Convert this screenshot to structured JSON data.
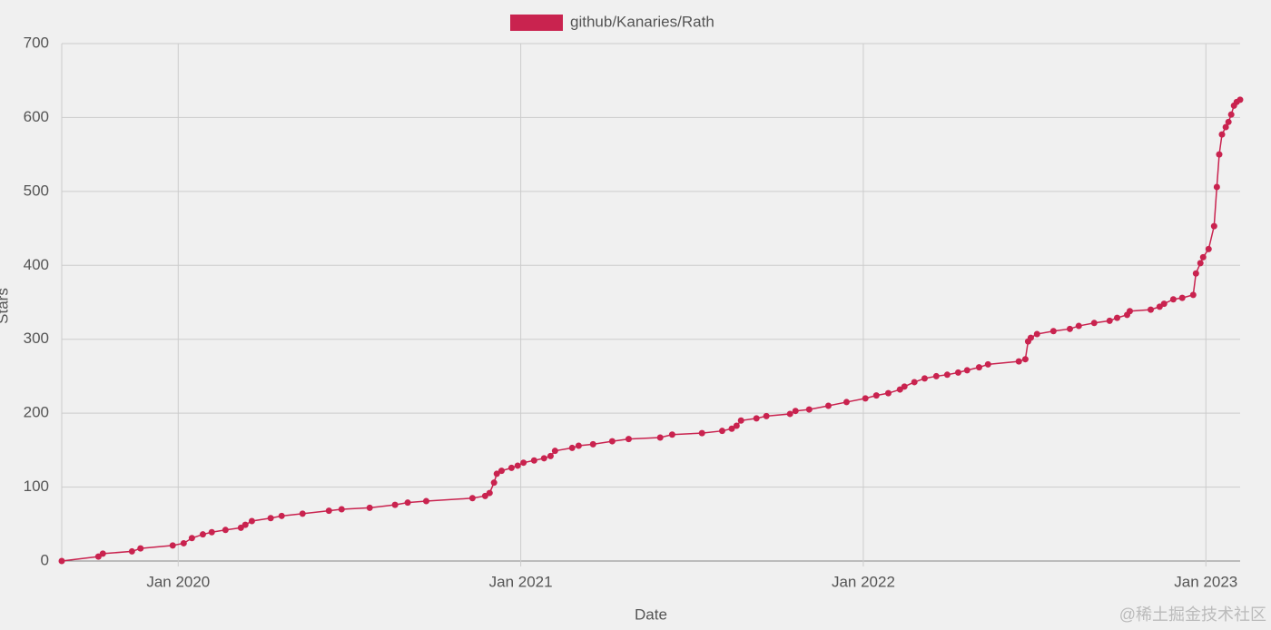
{
  "chart_data": {
    "type": "line",
    "x_label": "Date",
    "y_label": "Stars",
    "x": [
      2019.66,
      2019.767,
      2019.78,
      2019.865,
      2019.89,
      2019.984,
      2020.016,
      2020.04,
      2020.072,
      2020.098,
      2020.138,
      2020.183,
      2020.196,
      2020.215,
      2020.27,
      2020.302,
      2020.363,
      2020.44,
      2020.477,
      2020.559,
      2020.633,
      2020.67,
      2020.724,
      2020.859,
      2020.896,
      2020.909,
      2020.922,
      2020.93,
      2020.944,
      2020.973,
      2020.991,
      2021.008,
      2021.039,
      2021.068,
      2021.087,
      2021.1,
      2021.15,
      2021.169,
      2021.211,
      2021.267,
      2021.315,
      2021.407,
      2021.442,
      2021.529,
      2021.588,
      2021.616,
      2021.63,
      2021.643,
      2021.688,
      2021.717,
      2021.786,
      2021.802,
      2021.842,
      2021.898,
      2021.951,
      2022.006,
      2022.038,
      2022.073,
      2022.107,
      2022.12,
      2022.149,
      2022.179,
      2022.213,
      2022.245,
      2022.277,
      2022.303,
      2022.338,
      2022.364,
      2022.454,
      2022.473,
      2022.481,
      2022.489,
      2022.507,
      2022.555,
      2022.603,
      2022.629,
      2022.674,
      2022.719,
      2022.741,
      2022.77,
      2022.778,
      2022.839,
      2022.865,
      2022.878,
      2022.905,
      2022.931,
      2022.963,
      2022.971,
      2022.984,
      2022.992,
      2023.008,
      2023.024,
      2023.032,
      2023.039,
      2023.047,
      2023.058,
      2023.066,
      2023.074,
      2023.082,
      2023.09,
      2023.1
    ],
    "series": [
      {
        "name": "github/Kanaries/Rath",
        "color": "#c9234f",
        "values": [
          0,
          6,
          10,
          13,
          17,
          21,
          24,
          31,
          36,
          39,
          42,
          45,
          49,
          54,
          58,
          61,
          64,
          68,
          70,
          72,
          76,
          79,
          81,
          85,
          88,
          92,
          106,
          118,
          122,
          126,
          129,
          133,
          136,
          139,
          142,
          149,
          153,
          156,
          158,
          162,
          165,
          167,
          171,
          173,
          176,
          179,
          183,
          190,
          193,
          196,
          199,
          203,
          205,
          210,
          215,
          220,
          224,
          227,
          232,
          236,
          242,
          247,
          250,
          252,
          255,
          258,
          262,
          266,
          270,
          273,
          297,
          302,
          307,
          311,
          314,
          318,
          322,
          325,
          329,
          333,
          338,
          340,
          344,
          348,
          354,
          356,
          360,
          389,
          403,
          411,
          422,
          453,
          506,
          550,
          577,
          587,
          594,
          604,
          616,
          621,
          624
        ]
      }
    ],
    "xlim": [
      2019.66,
      2023.1
    ],
    "xticks": [
      {
        "value": 2020,
        "label": "Jan 2020"
      },
      {
        "value": 2021,
        "label": "Jan 2021"
      },
      {
        "value": 2022,
        "label": "Jan 2022"
      },
      {
        "value": 2023,
        "label": "Jan 2023"
      }
    ],
    "ylim": [
      0,
      700
    ],
    "yticks": [
      0,
      100,
      200,
      300,
      400,
      500,
      600,
      700
    ],
    "grid": true,
    "legend": "top"
  },
  "watermark": "@稀土掘金技术社区"
}
